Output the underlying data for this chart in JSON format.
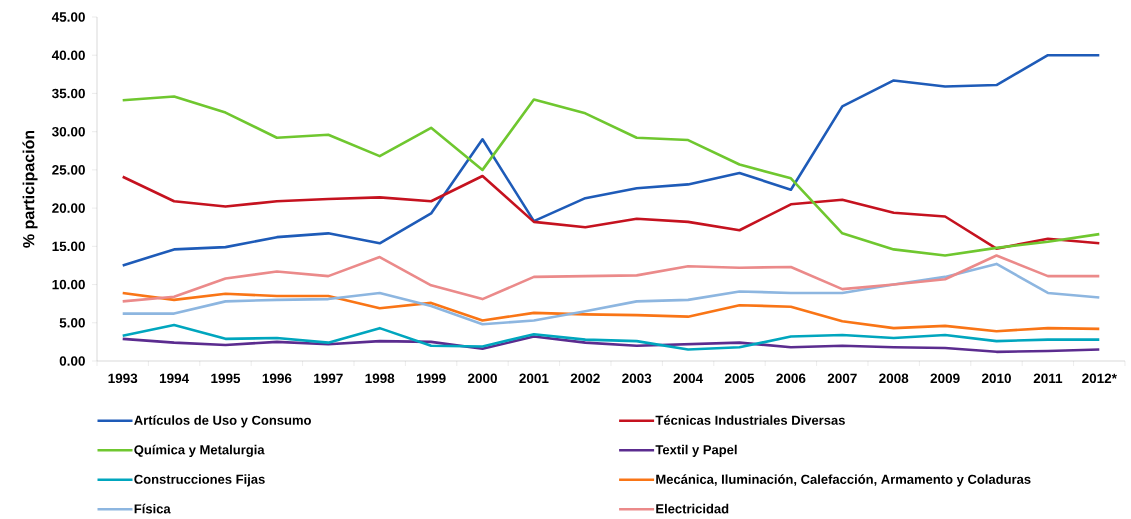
{
  "chart_data": {
    "type": "line",
    "ylabel": "% participación",
    "categories": [
      "1993",
      "1994",
      "1995",
      "1996",
      "1997",
      "1998",
      "1999",
      "2000",
      "2001",
      "2002",
      "2003",
      "2004",
      "2005",
      "2006",
      "2007",
      "2008",
      "2009",
      "2010",
      "2011",
      "2012*"
    ],
    "series": [
      {
        "name": "Artículos de Uso y Consumo",
        "color": "#1e5bb8",
        "values": [
          12.5,
          14.6,
          14.9,
          16.2,
          16.7,
          15.4,
          19.3,
          29.0,
          18.3,
          21.3,
          22.6,
          23.1,
          24.6,
          22.4,
          33.3,
          36.7,
          35.9,
          36.1,
          40.0,
          40.0
        ]
      },
      {
        "name": "Técnicas Industriales Diversas",
        "color": "#c5121f",
        "values": [
          24.1,
          20.9,
          20.2,
          20.9,
          21.2,
          21.4,
          20.9,
          24.2,
          18.2,
          17.5,
          18.6,
          18.2,
          17.1,
          20.5,
          21.1,
          19.4,
          18.9,
          14.7,
          16.0,
          15.4
        ]
      },
      {
        "name": "Química y Metalurgia",
        "color": "#6fc72f",
        "values": [
          34.1,
          34.6,
          32.5,
          29.2,
          29.6,
          26.8,
          30.5,
          25.0,
          34.2,
          32.4,
          29.2,
          28.9,
          25.7,
          23.9,
          16.7,
          14.6,
          13.8,
          14.8,
          15.6,
          16.6
        ]
      },
      {
        "name": "Textil y Papel",
        "color": "#5b2c8f",
        "values": [
          2.9,
          2.4,
          2.1,
          2.5,
          2.2,
          2.6,
          2.5,
          1.6,
          3.2,
          2.4,
          2.0,
          2.2,
          2.4,
          1.8,
          2.0,
          1.8,
          1.7,
          1.2,
          1.3,
          1.5
        ]
      },
      {
        "name": "Construcciones Fijas",
        "color": "#00a6be",
        "values": [
          3.3,
          4.7,
          2.9,
          3.0,
          2.4,
          4.3,
          2.0,
          1.9,
          3.5,
          2.8,
          2.6,
          1.5,
          1.8,
          3.2,
          3.4,
          3.0,
          3.4,
          2.6,
          2.8,
          2.8
        ]
      },
      {
        "name": "Mecánica, Iluminación, Calefacción, Armamento y Coladuras",
        "color": "#f97516",
        "values": [
          8.9,
          8.0,
          8.8,
          8.5,
          8.5,
          6.9,
          7.6,
          5.3,
          6.3,
          6.1,
          6.0,
          5.8,
          7.3,
          7.1,
          5.2,
          4.3,
          4.6,
          3.9,
          4.3,
          4.2
        ]
      },
      {
        "name": "Física",
        "color": "#8db6e0",
        "values": [
          6.2,
          6.2,
          7.8,
          8.0,
          8.1,
          8.9,
          7.2,
          4.8,
          5.3,
          6.5,
          7.8,
          8.0,
          9.1,
          8.9,
          8.9,
          10.0,
          11.0,
          12.7,
          8.9,
          8.3
        ]
      },
      {
        "name": "Electricidad",
        "color": "#eb8a8a",
        "values": [
          7.8,
          8.4,
          10.8,
          11.7,
          11.1,
          13.6,
          9.9,
          8.1,
          11.0,
          11.1,
          11.2,
          12.4,
          12.2,
          12.3,
          9.4,
          10.0,
          10.7,
          13.8,
          11.1,
          11.1
        ]
      }
    ],
    "ylim": [
      0,
      45
    ],
    "yticks": [
      {
        "value": 0,
        "label": "0.00"
      },
      {
        "value": 5,
        "label": "5.00"
      },
      {
        "value": 10,
        "label": "10.00"
      },
      {
        "value": 15,
        "label": "15.00"
      },
      {
        "value": 20,
        "label": "20.00"
      },
      {
        "value": 25,
        "label": "25.00"
      },
      {
        "value": 30,
        "label": "30.00"
      },
      {
        "value": 35,
        "label": "35.00"
      },
      {
        "value": 40,
        "label": "40.00"
      },
      {
        "value": 45,
        "label": "45.00"
      }
    ],
    "legend": "bottom",
    "marker": "none",
    "line_style": "solid"
  }
}
